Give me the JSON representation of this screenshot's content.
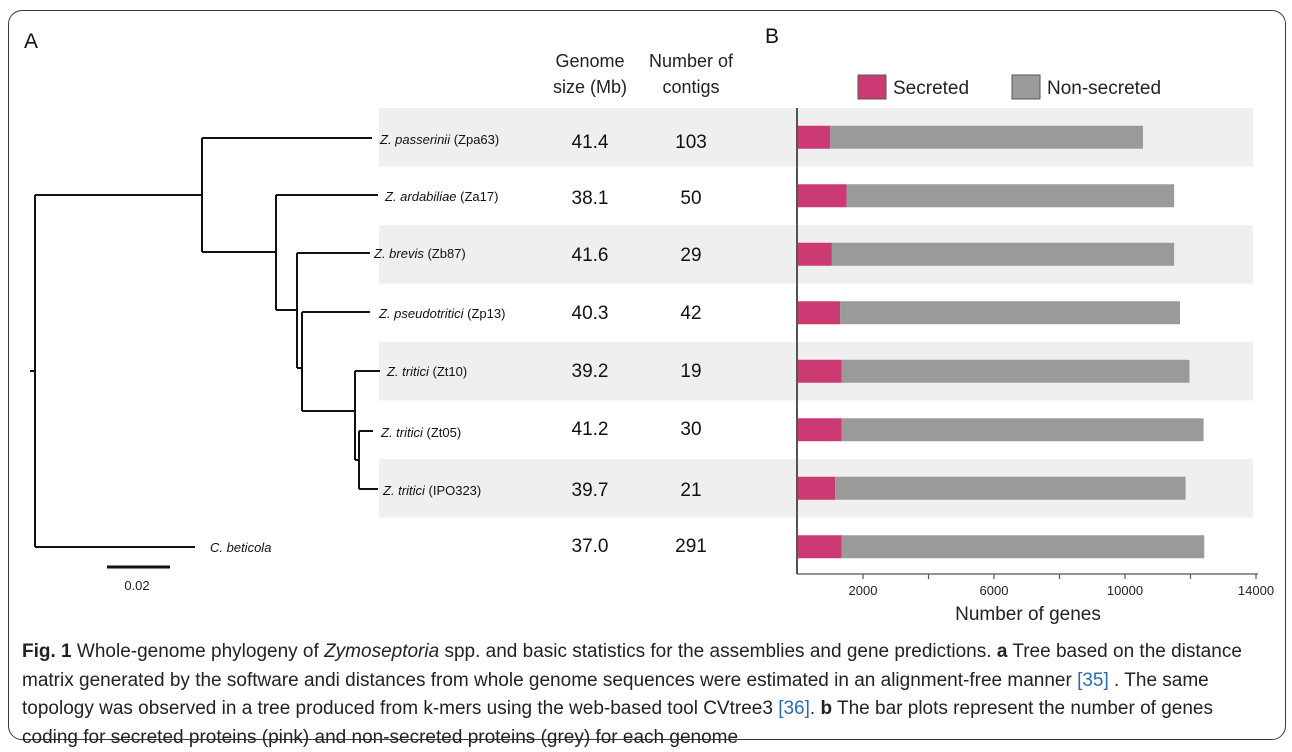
{
  "panel_a_label": "A",
  "panel_b_label": "B",
  "columns": {
    "genome_size": [
      "Genome",
      "size (Mb)"
    ],
    "contigs": [
      "Number of",
      "contigs"
    ]
  },
  "rows": [
    {
      "species_italic": "Z. passerinii",
      "strain": " (Zpa63)",
      "genome_size": "41.4",
      "contigs": "103"
    },
    {
      "species_italic": "Z. ardabiliae",
      "strain": " (Za17)",
      "genome_size": "38.1",
      "contigs": "50"
    },
    {
      "species_italic": "Z. brevis",
      "strain": " (Zb87)",
      "genome_size": "41.6",
      "contigs": "29"
    },
    {
      "species_italic": "Z. pseudotritici",
      "strain": " (Zp13)",
      "genome_size": "40.3",
      "contigs": "42"
    },
    {
      "species_italic": "Z. tritici",
      "strain": " (Zt10)",
      "genome_size": "39.2",
      "contigs": "19"
    },
    {
      "species_italic": "Z. tritici",
      "strain": " (Zt05)",
      "genome_size": "41.2",
      "contigs": "30"
    },
    {
      "species_italic": "Z. tritici",
      "strain": " (IPO323)",
      "genome_size": "39.7",
      "contigs": "21"
    },
    {
      "species_italic": "C. beticola",
      "strain": "",
      "genome_size": "37.0",
      "contigs": "291"
    }
  ],
  "scale_bar_label": "0.02",
  "colors": {
    "secreted": "#cc3a74",
    "non_secreted": "#9a9a9a",
    "row_band": "#efefef"
  },
  "chart_data": {
    "type": "bar",
    "orientation": "horizontal",
    "stacked": true,
    "categories": [
      "Zpa63",
      "Za17",
      "Zb87",
      "Zp13",
      "Zt10",
      "Zt05",
      "IPO323",
      "C. beticola"
    ],
    "series": [
      {
        "name": "Secreted",
        "values": [
          1000,
          1500,
          1050,
          1300,
          1350,
          1350,
          1150,
          1350
        ]
      },
      {
        "name": "Non-secreted",
        "values": [
          9550,
          10000,
          10450,
          10380,
          10620,
          11050,
          10700,
          11070
        ]
      }
    ],
    "xlabel": "Number of genes",
    "x_ticks": [
      "2000",
      "6000",
      "10000",
      "14000"
    ],
    "xlim": [
      0,
      14000
    ],
    "legend": "top"
  },
  "caption": {
    "fig_label": "Fig. 1",
    "title_pre": " Whole-genome phylogeny of ",
    "title_italic": "Zymoseptoria",
    "title_post": " spp. and basic statistics for the assemblies and gene predictions. ",
    "a_label": "a",
    "a_text": " Tree based on the distance matrix generated by the software andi distances from whole genome sequences were estimated in an alignment-free manner ",
    "ref1": "[35]",
    "a_text2": " . The same topology was observed in a tree produced from k-mers using the web-based tool CVtree3 ",
    "ref2": "[36]",
    "a_text3": ". ",
    "b_label": "b",
    "b_text": " The bar plots represent the number of genes coding for secreted proteins (pink) and non-secreted proteins (grey) for each genome"
  }
}
